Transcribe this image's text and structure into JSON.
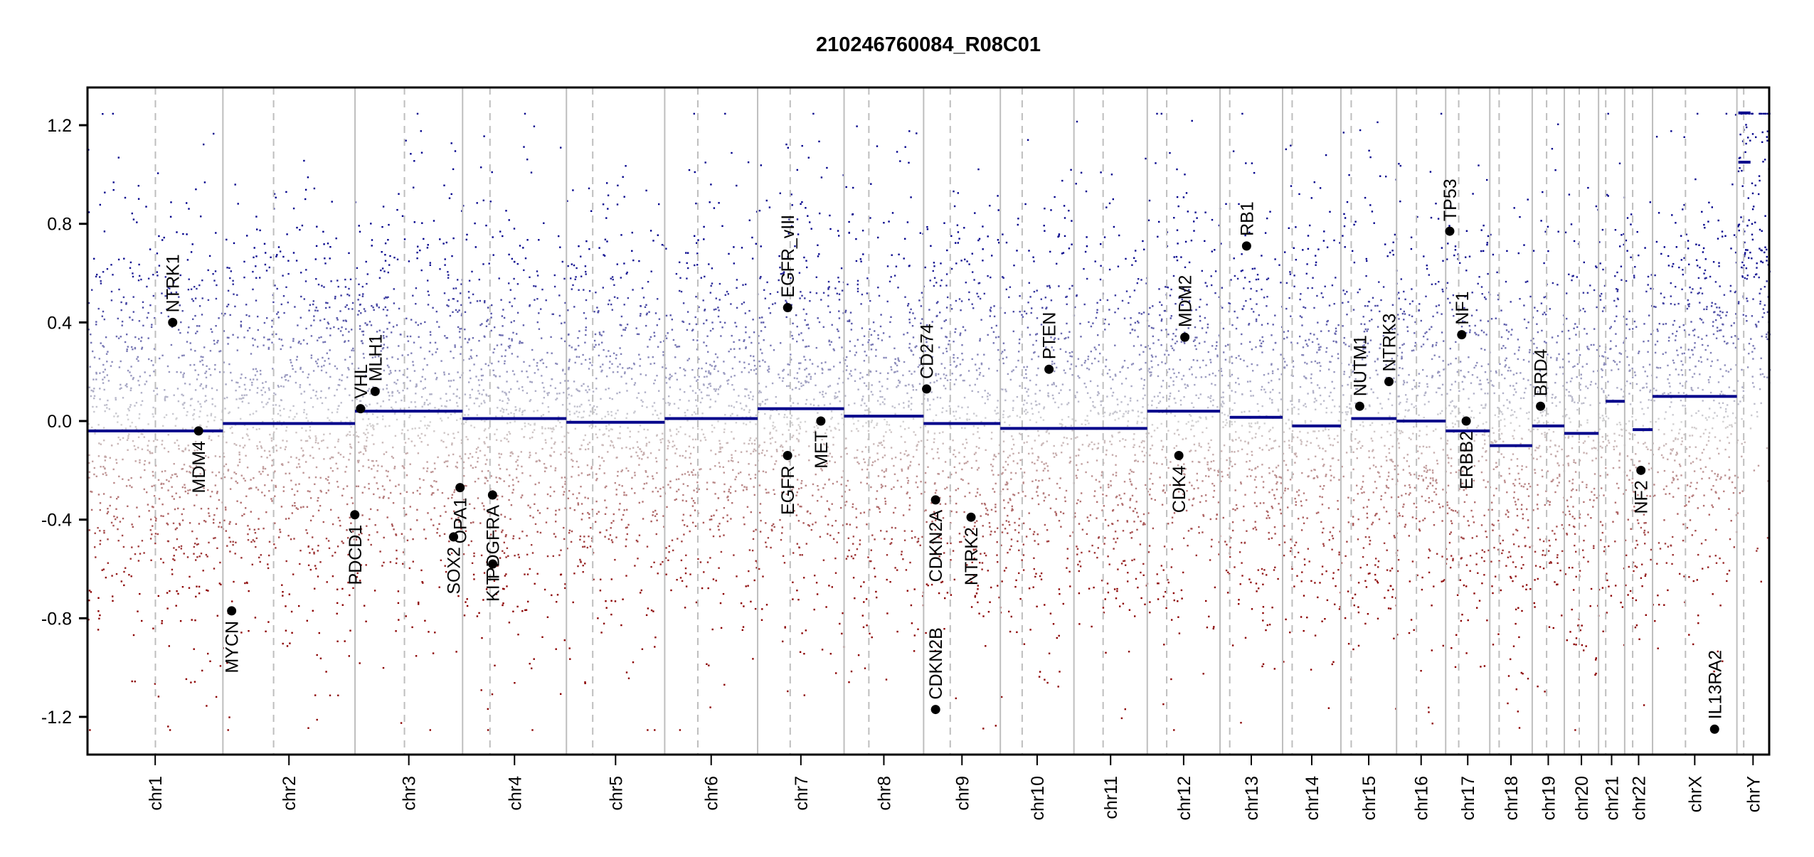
{
  "chart_data": {
    "type": "scatter",
    "title": "210246760084_R08C01",
    "xlabel": "",
    "ylabel": "",
    "ylim": [
      -1.353,
      1.353
    ],
    "clip": [
      -1.25,
      1.25
    ],
    "yticks": [
      1.2,
      0.8,
      0.4,
      0.0,
      -0.4,
      -0.8,
      -1.2
    ],
    "ytick_labels": [
      "1.2",
      "0.8",
      "0.4",
      "0.0",
      "-0.4",
      "-0.8",
      "-1.2"
    ],
    "chromosomes": [
      {
        "name": "chr1",
        "length": 249.25,
        "centromere": 125.0,
        "segments": [
          {
            "start": 0,
            "end": 249.25,
            "value": -0.04
          }
        ]
      },
      {
        "name": "chr2",
        "length": 243.2,
        "centromere": 93.3,
        "segments": [
          {
            "start": 0,
            "end": 243.2,
            "value": -0.01
          }
        ]
      },
      {
        "name": "chr3",
        "length": 198.0,
        "centromere": 91.0,
        "segments": [
          {
            "start": 0,
            "end": 198.0,
            "value": 0.04
          }
        ]
      },
      {
        "name": "chr4",
        "length": 191.15,
        "centromere": 50.4,
        "segments": [
          {
            "start": 0,
            "end": 191.15,
            "value": 0.01
          }
        ]
      },
      {
        "name": "chr5",
        "length": 180.9,
        "centromere": 48.4,
        "segments": [
          {
            "start": 0,
            "end": 180.9,
            "value": -0.005
          }
        ]
      },
      {
        "name": "chr6",
        "length": 171.1,
        "centromere": 61.0,
        "segments": [
          {
            "start": 0,
            "end": 171.1,
            "value": 0.01
          }
        ]
      },
      {
        "name": "chr7",
        "length": 159.1,
        "centromere": 59.9,
        "segments": [
          {
            "start": 0,
            "end": 159.1,
            "value": 0.05
          }
        ]
      },
      {
        "name": "chr8",
        "length": 146.4,
        "centromere": 45.6,
        "segments": [
          {
            "start": 0,
            "end": 146.4,
            "value": 0.02
          }
        ]
      },
      {
        "name": "chr9",
        "length": 141.2,
        "centromere": 49.0,
        "segments": [
          {
            "start": 0,
            "end": 141.2,
            "value": -0.01
          }
        ]
      },
      {
        "name": "chr10",
        "length": 135.5,
        "centromere": 40.2,
        "segments": [
          {
            "start": 0,
            "end": 135.5,
            "value": -0.03
          }
        ]
      },
      {
        "name": "chr11",
        "length": 135.0,
        "centromere": 53.7,
        "segments": [
          {
            "start": 0,
            "end": 135.0,
            "value": -0.03
          }
        ]
      },
      {
        "name": "chr12",
        "length": 133.9,
        "centromere": 35.8,
        "segments": [
          {
            "start": 0,
            "end": 133.9,
            "value": 0.04
          }
        ]
      },
      {
        "name": "chr13",
        "length": 115.2,
        "centromere": 17.9,
        "segments": [
          {
            "start": 17.9,
            "end": 115.2,
            "value": 0.015
          }
        ]
      },
      {
        "name": "chr14",
        "length": 107.3,
        "centromere": 17.6,
        "segments": [
          {
            "start": 17.6,
            "end": 107.3,
            "value": -0.02
          }
        ]
      },
      {
        "name": "chr15",
        "length": 102.5,
        "centromere": 19.0,
        "segments": [
          {
            "start": 19.0,
            "end": 102.5,
            "value": 0.01
          }
        ]
      },
      {
        "name": "chr16",
        "length": 90.4,
        "centromere": 36.6,
        "segments": [
          {
            "start": 0,
            "end": 90.4,
            "value": 0.0
          }
        ]
      },
      {
        "name": "chr17",
        "length": 81.2,
        "centromere": 24.0,
        "segments": [
          {
            "start": 0,
            "end": 81.2,
            "value": -0.04
          }
        ]
      },
      {
        "name": "chr18",
        "length": 78.1,
        "centromere": 17.2,
        "segments": [
          {
            "start": 0,
            "end": 78.1,
            "value": -0.1
          }
        ]
      },
      {
        "name": "chr19",
        "length": 59.1,
        "centromere": 26.5,
        "segments": [
          {
            "start": 0,
            "end": 59.1,
            "value": -0.02
          }
        ]
      },
      {
        "name": "chr20",
        "length": 63.0,
        "centromere": 27.5,
        "segments": [
          {
            "start": 0,
            "end": 63.0,
            "value": -0.05
          }
        ]
      },
      {
        "name": "chr21",
        "length": 48.1,
        "centromere": 13.2,
        "segments": [
          {
            "start": 13.2,
            "end": 48.1,
            "value": 0.08
          }
        ]
      },
      {
        "name": "chr22",
        "length": 51.3,
        "centromere": 14.7,
        "segments": [
          {
            "start": 14.7,
            "end": 51.3,
            "value": -0.035
          }
        ]
      },
      {
        "name": "chrX",
        "length": 155.3,
        "centromere": 60.6,
        "segments": [
          {
            "start": 0,
            "end": 155.3,
            "value": 0.1
          }
        ]
      },
      {
        "name": "chrY",
        "length": 59.4,
        "centromere": 12.5,
        "segments": [
          {
            "start": 2.6,
            "end": 25.0,
            "value": 1.25
          },
          {
            "start": 2.6,
            "end": 25.0,
            "value": 1.05
          }
        ]
      }
    ],
    "genes": [
      {
        "name": "NTRK1",
        "chrom": "chr1",
        "pos": 156.8,
        "value": 0.4,
        "label": "up"
      },
      {
        "name": "MDM4",
        "chrom": "chr1",
        "pos": 204.5,
        "value": -0.04,
        "label": "down"
      },
      {
        "name": "MYCN",
        "chrom": "chr2",
        "pos": 16.1,
        "value": -0.77,
        "label": "down"
      },
      {
        "name": "PDCD1",
        "chrom": "chr2",
        "pos": 242.8,
        "value": -0.38,
        "label": "down"
      },
      {
        "name": "VHL",
        "chrom": "chr3",
        "pos": 10.2,
        "value": 0.05,
        "label": "up"
      },
      {
        "name": "MLH1",
        "chrom": "chr3",
        "pos": 37.0,
        "value": 0.12,
        "label": "up"
      },
      {
        "name": "SOX2",
        "chrom": "chr3",
        "pos": 181.4,
        "value": -0.47,
        "label": "down"
      },
      {
        "name": "OPA1",
        "chrom": "chr3",
        "pos": 193.3,
        "value": -0.27,
        "label": "down"
      },
      {
        "name": "KIT",
        "chrom": "chr4",
        "pos": 55.5,
        "value": -0.58,
        "label": "down"
      },
      {
        "name": "PDGFRA",
        "chrom": "chr4",
        "pos": 55.1,
        "value": -0.3,
        "label": "down"
      },
      {
        "name": "EGFR_vIII",
        "chrom": "chr7",
        "pos": 55.2,
        "value": 0.46,
        "label": "up"
      },
      {
        "name": "EGFR",
        "chrom": "chr7",
        "pos": 55.1,
        "value": -0.14,
        "label": "down"
      },
      {
        "name": "MET",
        "chrom": "chr7",
        "pos": 116.3,
        "value": 0.0,
        "label": "down"
      },
      {
        "name": "CD274",
        "chrom": "chr9",
        "pos": 5.5,
        "value": 0.13,
        "label": "up"
      },
      {
        "name": "CDKN2A",
        "chrom": "chr9",
        "pos": 21.97,
        "value": -0.32,
        "label": "down"
      },
      {
        "name": "CDKN2B",
        "chrom": "chr9",
        "pos": 22.0,
        "value": -1.17,
        "label": "up"
      },
      {
        "name": "NTRK2",
        "chrom": "chr9",
        "pos": 87.3,
        "value": -0.39,
        "label": "down"
      },
      {
        "name": "PTEN",
        "chrom": "chr10",
        "pos": 89.6,
        "value": 0.21,
        "label": "up"
      },
      {
        "name": "CDK4",
        "chrom": "chr12",
        "pos": 58.1,
        "value": -0.14,
        "label": "down"
      },
      {
        "name": "MDM2",
        "chrom": "chr12",
        "pos": 69.2,
        "value": 0.34,
        "label": "up"
      },
      {
        "name": "RB1",
        "chrom": "chr13",
        "pos": 48.9,
        "value": 0.71,
        "label": "up"
      },
      {
        "name": "NUTM1",
        "chrom": "chr15",
        "pos": 34.6,
        "value": 0.06,
        "label": "up"
      },
      {
        "name": "NTRK3",
        "chrom": "chr15",
        "pos": 88.5,
        "value": 0.16,
        "label": "up"
      },
      {
        "name": "TP53",
        "chrom": "chr17",
        "pos": 7.5,
        "value": 0.77,
        "label": "up"
      },
      {
        "name": "NF1",
        "chrom": "chr17",
        "pos": 29.5,
        "value": 0.35,
        "label": "up"
      },
      {
        "name": "ERBB2",
        "chrom": "chr17",
        "pos": 37.8,
        "value": 0.0,
        "label": "down"
      },
      {
        "name": "BRD4",
        "chrom": "chr19",
        "pos": 15.3,
        "value": 0.06,
        "label": "up"
      },
      {
        "name": "NF2",
        "chrom": "chr22",
        "pos": 29.9,
        "value": -0.2,
        "label": "down"
      },
      {
        "name": "IL13RA2",
        "chrom": "chrX",
        "pos": 114.2,
        "value": -1.25,
        "label": "up"
      }
    ],
    "colors": {
      "gain": "#00008B",
      "neutral": "#D3D3D3",
      "loss": "#8B0000",
      "segment": "#00008B",
      "gene": "#000000",
      "chrom_border": "#BEBEBE",
      "centromere": "#BEBEBE"
    }
  }
}
